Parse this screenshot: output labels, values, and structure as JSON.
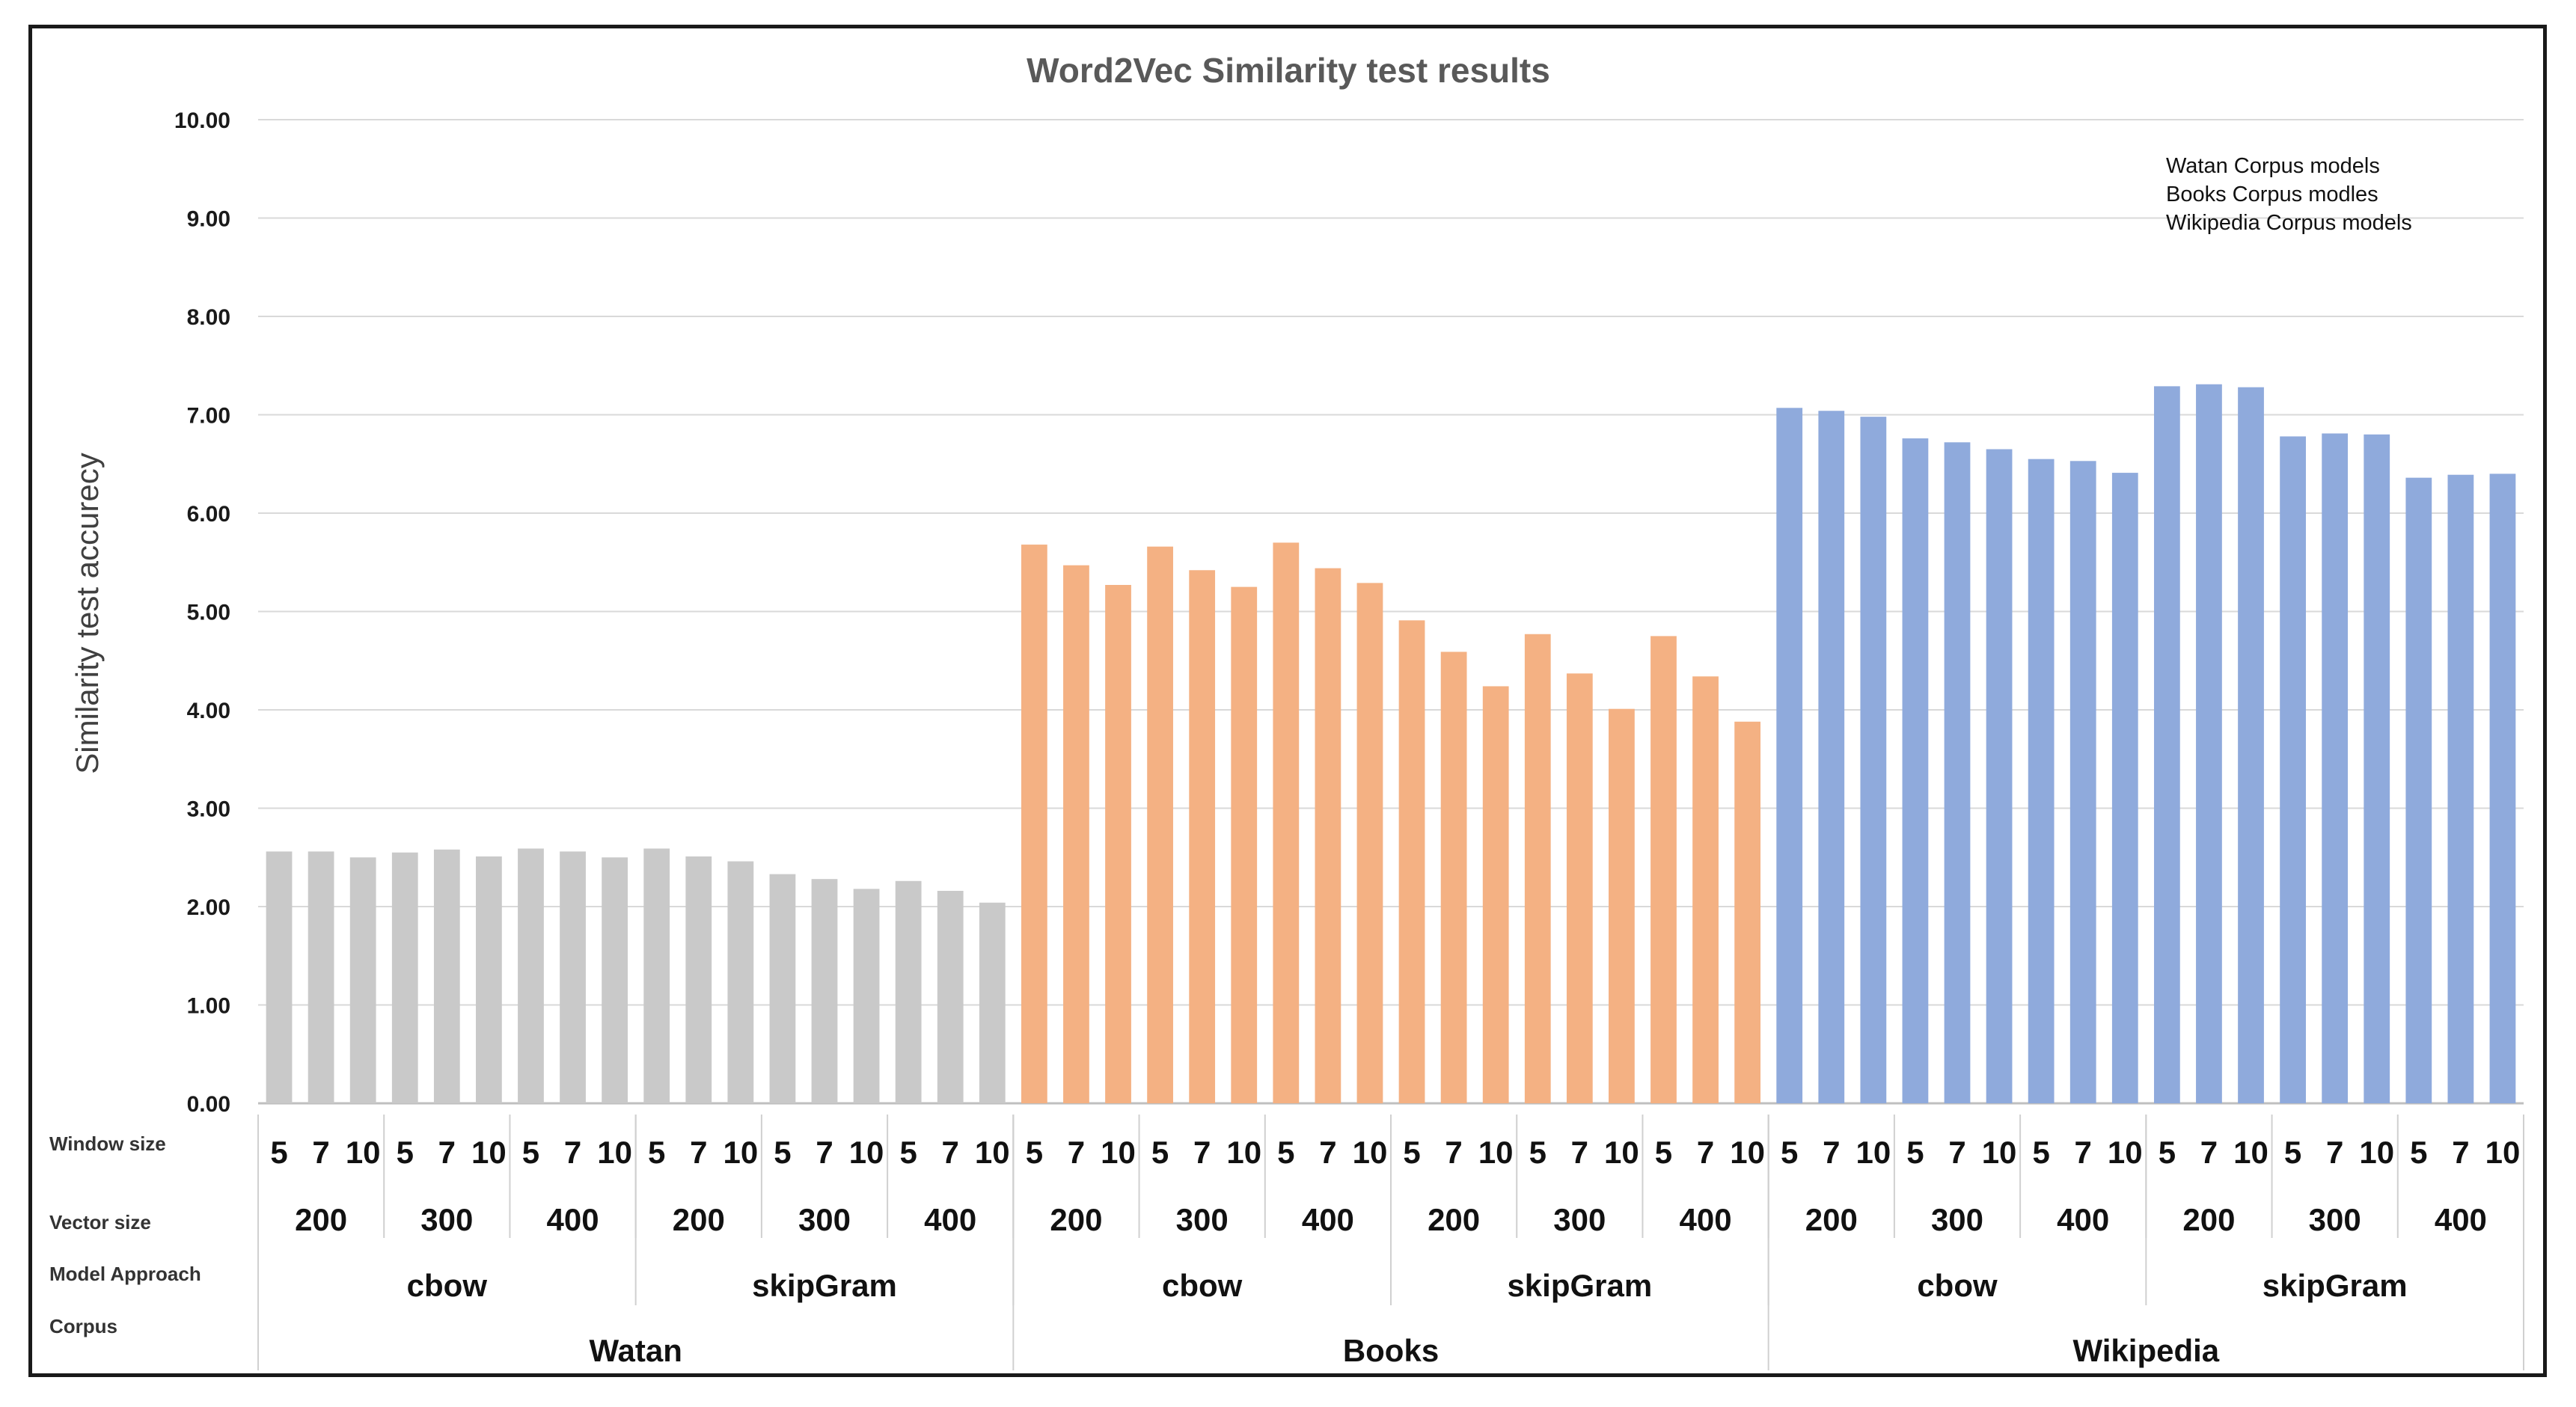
{
  "chart_data": {
    "type": "bar",
    "title": "Word2Vec Similarity test results",
    "ylabel": "Similarity test accurecy",
    "xlabel": "",
    "ylim": [
      0,
      10
    ],
    "yticks": [
      "0.00",
      "1.00",
      "2.00",
      "3.00",
      "4.00",
      "5.00",
      "6.00",
      "7.00",
      "8.00",
      "9.00",
      "10.00"
    ],
    "grid": true,
    "legend_position": "top-right",
    "legend": [
      "Watan Corpus models",
      "Books Corpus modles",
      "Wikipedia Corpus models"
    ],
    "row_labels": {
      "window": "Window size",
      "vector": "Vector size",
      "approach": "Model Approach",
      "corpus": "Corpus"
    },
    "window_sizes": [
      "5",
      "7",
      "10"
    ],
    "vector_sizes": [
      "200",
      "300",
      "400"
    ],
    "approaches": [
      "cbow",
      "skipGram"
    ],
    "corpora": [
      {
        "name": "Watan",
        "color": "#c9c9c9",
        "values": [
          2.56,
          2.56,
          2.5,
          2.55,
          2.58,
          2.51,
          2.59,
          2.56,
          2.5,
          2.59,
          2.51,
          2.46,
          2.33,
          2.28,
          2.18,
          2.26,
          2.16,
          2.04
        ]
      },
      {
        "name": "Books",
        "color": "#f4b183",
        "values": [
          5.68,
          5.47,
          5.27,
          5.66,
          5.42,
          5.25,
          5.7,
          5.44,
          5.29,
          4.91,
          4.59,
          4.24,
          4.77,
          4.37,
          4.01,
          4.75,
          4.34,
          3.88
        ]
      },
      {
        "name": "Wikipedia",
        "color": "#8faadc",
        "values": [
          7.07,
          7.04,
          6.98,
          6.76,
          6.72,
          6.65,
          6.55,
          6.53,
          6.41,
          7.29,
          7.31,
          7.28,
          6.78,
          6.81,
          6.8,
          6.36,
          6.39,
          6.4
        ]
      }
    ]
  }
}
